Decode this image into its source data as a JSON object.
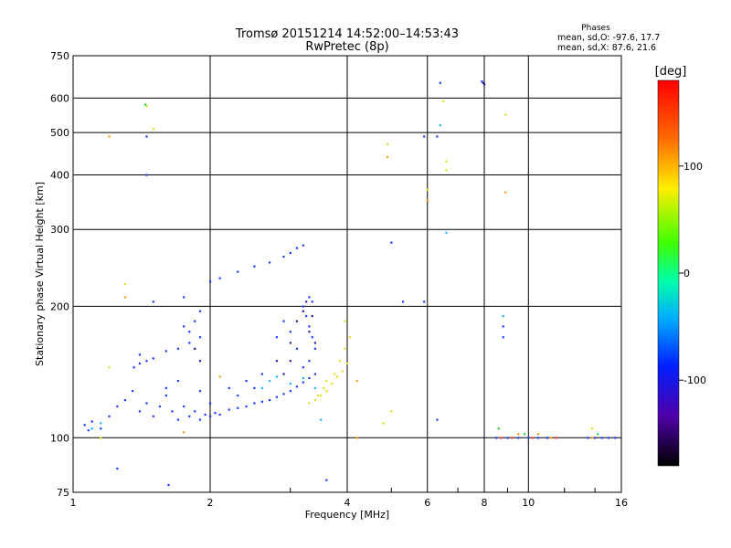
{
  "chart_data": {
    "type": "scatter",
    "title": "Tromsø 20151214 14:52:00–14:53:43",
    "subtitle": "RwPretec (8p)",
    "xlabel": "Frequency [MHz]",
    "ylabel": "Stationary phase Virtual Height [km]",
    "x_scale": "log",
    "y_scale": "log",
    "xlim": [
      1,
      16
    ],
    "ylim": [
      75,
      750
    ],
    "x_ticks": [
      1,
      2,
      4,
      6,
      8,
      10,
      16
    ],
    "x_tick_labels": [
      "1",
      "2",
      "4",
      "6",
      "8",
      "10",
      "16"
    ],
    "y_ticks": [
      75,
      100,
      200,
      300,
      400,
      500,
      600,
      750
    ],
    "y_tick_labels": [
      "75",
      "100",
      "200",
      "300",
      "400",
      "500",
      "600",
      "750"
    ],
    "grid": true,
    "phases_box": {
      "heading": "Phases",
      "line1": "mean, sd,O: -97.6, 17.7",
      "line2": "mean, sd,X:  87.6, 21.6"
    },
    "colorbar": {
      "label": "[deg]",
      "range": [
        -180,
        180
      ],
      "ticks": [
        100,
        0,
        -100
      ],
      "tick_labels": [
        "100",
        "0",
        "-100"
      ]
    },
    "series": [
      {
        "color": "#1a3cff",
        "points": [
          [
            1.06,
            107
          ],
          [
            1.08,
            104
          ],
          [
            1.1,
            109
          ],
          [
            1.15,
            105
          ],
          [
            1.2,
            112
          ],
          [
            1.25,
            118
          ],
          [
            1.3,
            122
          ],
          [
            1.35,
            128
          ],
          [
            1.4,
            115
          ],
          [
            1.45,
            120
          ],
          [
            1.5,
            112
          ],
          [
            1.55,
            118
          ],
          [
            1.6,
            125
          ],
          [
            1.65,
            115
          ],
          [
            1.7,
            110
          ],
          [
            1.75,
            118
          ],
          [
            1.8,
            112
          ],
          [
            1.85,
            115
          ],
          [
            1.9,
            110
          ],
          [
            1.95,
            113
          ],
          [
            2.0,
            112
          ],
          [
            2.05,
            114
          ],
          [
            2.1,
            113
          ],
          [
            2.2,
            116
          ],
          [
            2.3,
            117
          ],
          [
            2.4,
            118
          ],
          [
            2.5,
            120
          ],
          [
            2.6,
            121
          ],
          [
            2.7,
            122
          ],
          [
            2.8,
            124
          ],
          [
            2.9,
            126
          ],
          [
            3.0,
            128
          ],
          [
            3.1,
            131
          ],
          [
            3.2,
            134
          ],
          [
            3.3,
            137
          ],
          [
            3.4,
            140
          ],
          [
            1.4,
            155
          ],
          [
            1.5,
            152
          ],
          [
            1.6,
            158
          ],
          [
            1.7,
            160
          ],
          [
            1.8,
            165
          ],
          [
            1.9,
            170
          ],
          [
            1.75,
            180
          ],
          [
            1.85,
            185
          ],
          [
            1.9,
            195
          ],
          [
            1.8,
            175
          ],
          [
            1.36,
            145
          ],
          [
            1.4,
            148
          ],
          [
            1.45,
            150
          ],
          [
            2.0,
            228
          ],
          [
            2.1,
            232
          ],
          [
            2.3,
            240
          ],
          [
            2.5,
            247
          ],
          [
            2.7,
            252
          ],
          [
            2.9,
            260
          ],
          [
            3.0,
            265
          ],
          [
            3.1,
            272
          ],
          [
            3.2,
            276
          ],
          [
            3.2,
            200
          ],
          [
            3.3,
            210
          ],
          [
            3.35,
            205
          ],
          [
            3.25,
            190
          ],
          [
            3.3,
            180
          ],
          [
            3.35,
            170
          ],
          [
            3.4,
            160
          ],
          [
            3.3,
            150
          ],
          [
            3.2,
            145
          ],
          [
            3.1,
            160
          ],
          [
            3.0,
            175
          ],
          [
            2.9,
            185
          ],
          [
            2.8,
            170
          ],
          [
            2.2,
            130
          ],
          [
            2.4,
            135
          ],
          [
            2.6,
            140
          ],
          [
            2.5,
            130
          ],
          [
            2.3,
            125
          ],
          [
            2.0,
            120
          ],
          [
            1.9,
            128
          ],
          [
            1.7,
            135
          ],
          [
            1.6,
            130
          ],
          [
            6.3,
            110
          ],
          [
            6.4,
            650
          ],
          [
            6.3,
            490
          ],
          [
            5.9,
            490
          ],
          [
            5.3,
            205
          ],
          [
            5.0,
            280
          ],
          [
            5.9,
            205
          ],
          [
            7.9,
            655
          ],
          [
            8.8,
            170
          ],
          [
            8.8,
            180
          ],
          [
            8.5,
            100
          ],
          [
            9.0,
            100
          ],
          [
            9.5,
            100
          ],
          [
            10.0,
            100
          ],
          [
            10.5,
            100
          ],
          [
            11.0,
            100
          ],
          [
            13.5,
            100
          ],
          [
            14.0,
            100
          ],
          [
            14.5,
            100
          ],
          [
            15.0,
            100
          ],
          [
            15.5,
            100
          ],
          [
            1.45,
            400
          ],
          [
            1.45,
            490
          ],
          [
            1.5,
            205
          ],
          [
            1.25,
            85
          ],
          [
            1.62,
            78
          ],
          [
            3.6,
            80
          ],
          [
            1.75,
            210
          ]
        ]
      },
      {
        "color": "#3a1a9a",
        "points": [
          [
            1.9,
            150
          ],
          [
            1.85,
            160
          ],
          [
            2.8,
            150
          ],
          [
            3.0,
            165
          ],
          [
            3.1,
            185
          ],
          [
            3.2,
            195
          ],
          [
            3.3,
            175
          ],
          [
            3.4,
            165
          ],
          [
            2.9,
            140
          ],
          [
            3.0,
            150
          ],
          [
            7.95,
            650
          ],
          [
            8.0,
            645
          ],
          [
            3.25,
            205
          ],
          [
            3.35,
            190
          ]
        ]
      },
      {
        "color": "#1ab4ff",
        "points": [
          [
            1.1,
            105
          ],
          [
            1.15,
            108
          ],
          [
            2.6,
            130
          ],
          [
            2.7,
            135
          ],
          [
            2.8,
            138
          ],
          [
            3.0,
            133
          ],
          [
            3.2,
            137
          ],
          [
            3.4,
            130
          ],
          [
            3.5,
            110
          ],
          [
            6.6,
            295
          ],
          [
            6.4,
            520
          ],
          [
            8.8,
            190
          ]
        ]
      },
      {
        "color": "#e0e020",
        "points": [
          [
            3.3,
            120
          ],
          [
            3.4,
            122
          ],
          [
            3.5,
            125
          ],
          [
            3.6,
            128
          ],
          [
            3.7,
            133
          ],
          [
            3.8,
            138
          ],
          [
            3.9,
            142
          ],
          [
            4.0,
            148
          ],
          [
            3.6,
            135
          ],
          [
            3.75,
            140
          ],
          [
            3.85,
            150
          ],
          [
            3.95,
            160
          ],
          [
            4.05,
            170
          ],
          [
            3.95,
            185
          ],
          [
            3.45,
            125
          ],
          [
            3.55,
            130
          ],
          [
            1.2,
            145
          ],
          [
            1.3,
            225
          ],
          [
            1.5,
            510
          ],
          [
            1.45,
            575
          ],
          [
            4.9,
            470
          ],
          [
            6.0,
            370
          ],
          [
            6.5,
            590
          ],
          [
            6.6,
            430
          ],
          [
            6.6,
            410
          ],
          [
            8.9,
            550
          ],
          [
            5.0,
            115
          ],
          [
            4.8,
            108
          ],
          [
            1.15,
            100
          ],
          [
            13.8,
            105
          ]
        ]
      },
      {
        "color": "#ff9a10",
        "points": [
          [
            1.2,
            490
          ],
          [
            1.3,
            210
          ],
          [
            4.9,
            440
          ],
          [
            6.0,
            350
          ],
          [
            8.9,
            365
          ],
          [
            4.2,
            100
          ],
          [
            4.2,
            135
          ],
          [
            9.5,
            102
          ],
          [
            10.5,
            102
          ],
          [
            11.2,
            100
          ],
          [
            13.8,
            100
          ],
          [
            2.1,
            138
          ],
          [
            1.75,
            103
          ]
        ]
      },
      {
        "color": "#30d040",
        "points": [
          [
            1.44,
            580
          ],
          [
            8.6,
            105
          ],
          [
            9.8,
            102
          ],
          [
            14.2,
            102
          ]
        ]
      },
      {
        "color": "#ff3030",
        "points": [
          [
            8.7,
            100
          ],
          [
            9.2,
            100
          ],
          [
            10.2,
            100
          ],
          [
            11.5,
            100
          ]
        ]
      }
    ]
  }
}
